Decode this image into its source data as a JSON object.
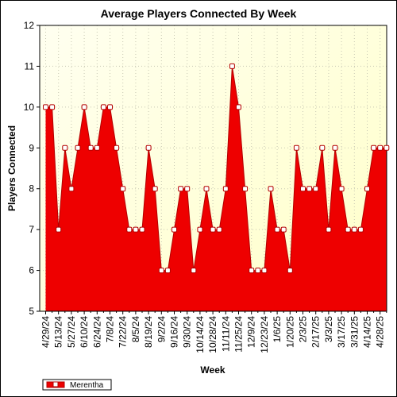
{
  "chart_data": {
    "type": "area",
    "title": "Average Players Connected By Week",
    "xlabel": "Week",
    "ylabel": "Players Connected",
    "ylim": [
      5,
      12
    ],
    "yticks": [
      5,
      6,
      7,
      8,
      9,
      10,
      11,
      12
    ],
    "grid": true,
    "legend_position": "bottom-left",
    "colors": {
      "area_fill": "#ee0000",
      "line": "#b30000",
      "plot_bg_top": "#fffff0",
      "plot_bg_bottom": "#ffffc8",
      "grid": "#c8c8b4",
      "marker_fill": "#ffffff"
    },
    "x_labels": [
      "4/29/24",
      "5/13/24",
      "5/27/24",
      "6/10/24",
      "6/24/24",
      "7/8/24",
      "7/22/24",
      "8/5/24",
      "8/19/24",
      "9/2/24",
      "9/16/24",
      "9/30/24",
      "10/14/24",
      "10/28/24",
      "11/11/24",
      "11/25/24",
      "12/9/24",
      "12/23/24",
      "1/6/25",
      "1/20/25",
      "2/3/25",
      "2/17/25",
      "3/3/25",
      "3/17/25",
      "3/31/25",
      "4/14/25",
      "4/28/25"
    ],
    "series": [
      {
        "name": "Merentha",
        "x": [
          "4/29/24",
          "5/6/24",
          "5/13/24",
          "5/20/24",
          "5/27/24",
          "6/3/24",
          "6/10/24",
          "6/17/24",
          "6/24/24",
          "7/1/24",
          "7/8/24",
          "7/15/24",
          "7/22/24",
          "7/29/24",
          "8/5/24",
          "8/12/24",
          "8/19/24",
          "8/26/24",
          "9/2/24",
          "9/9/24",
          "9/16/24",
          "9/23/24",
          "9/30/24",
          "10/7/24",
          "10/14/24",
          "10/21/24",
          "10/28/24",
          "11/4/24",
          "11/11/24",
          "11/18/24",
          "11/25/24",
          "12/2/24",
          "12/9/24",
          "12/16/24",
          "12/23/24",
          "12/30/24",
          "1/6/25",
          "1/13/25",
          "1/20/25",
          "1/27/25",
          "2/3/25",
          "2/10/25",
          "2/17/25",
          "2/24/25",
          "3/3/25",
          "3/10/25",
          "3/17/25",
          "3/24/25",
          "3/31/25",
          "4/7/25",
          "4/14/25",
          "4/21/25",
          "4/28/25",
          "5/5/25"
        ],
        "values": [
          10,
          10,
          7,
          9,
          8,
          9,
          10,
          9,
          9,
          10,
          10,
          9,
          8,
          7,
          7,
          7,
          9,
          8,
          6,
          6,
          7,
          8,
          8,
          6,
          7,
          8,
          7,
          7,
          8,
          11,
          10,
          8,
          6,
          6,
          6,
          8,
          7,
          7,
          6,
          9,
          8,
          8,
          8,
          9,
          7,
          9,
          8,
          7,
          7,
          7,
          8,
          9,
          9,
          9
        ]
      }
    ]
  }
}
